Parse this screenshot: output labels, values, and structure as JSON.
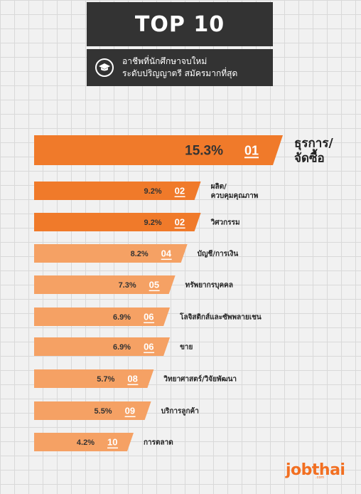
{
  "header": {
    "title": "TOP 10",
    "subtitle_line1": "อาชีพที่นักศึกษาจบใหม่",
    "subtitle_line2": "ระดับปริญญาตรี สมัครมากที่สุด",
    "icon": "graduation-cap-icon"
  },
  "logo": {
    "text": "jobthai",
    "small": ".com"
  },
  "colors": {
    "bar_top": "#f07a2a",
    "bar_light": "#f5a164",
    "header_bg": "#333333",
    "brand": "#f26f21"
  },
  "chart_data": {
    "type": "bar",
    "orientation": "horizontal",
    "title": "",
    "categories": [
      "ธุรการ/จัดซื้อ",
      "ผลิต/ควบคุมคุณภาพ",
      "วิศวกรรม",
      "บัญชี/การเงิน",
      "ทรัพยากรบุคคล",
      "โลจิสติกส์และซัพพลายเชน",
      "ขาย",
      "วิทยาศาสตร์/วิจัยพัฒนา",
      "บริการลูกค้า",
      "การตลาด"
    ],
    "category_lines": [
      [
        "ธุรการ/",
        "จัดซื้อ"
      ],
      [
        "ผลิต/",
        "ควบคุมคุณภาพ"
      ],
      [
        "วิศวกรรม"
      ],
      [
        "บัญชี/การเงิน"
      ],
      [
        "ทรัพยากรบุคคล"
      ],
      [
        "โลจิสติกส์และซัพพลายเชน"
      ],
      [
        "ขาย"
      ],
      [
        "วิทยาศาสตร์/วิจัยพัฒนา"
      ],
      [
        "บริการลูกค้า"
      ],
      [
        "การตลาด"
      ]
    ],
    "values": [
      15.3,
      9.2,
      9.2,
      8.2,
      7.3,
      6.9,
      6.9,
      5.7,
      5.5,
      4.2
    ],
    "value_labels": [
      "15.3%",
      "9.2%",
      "9.2%",
      "8.2%",
      "7.3%",
      "6.9%",
      "6.9%",
      "5.7%",
      "5.5%",
      "4.2%"
    ],
    "ranks": [
      "01",
      "02",
      "02",
      "04",
      "05",
      "06",
      "06",
      "08",
      "09",
      "10"
    ]
  }
}
